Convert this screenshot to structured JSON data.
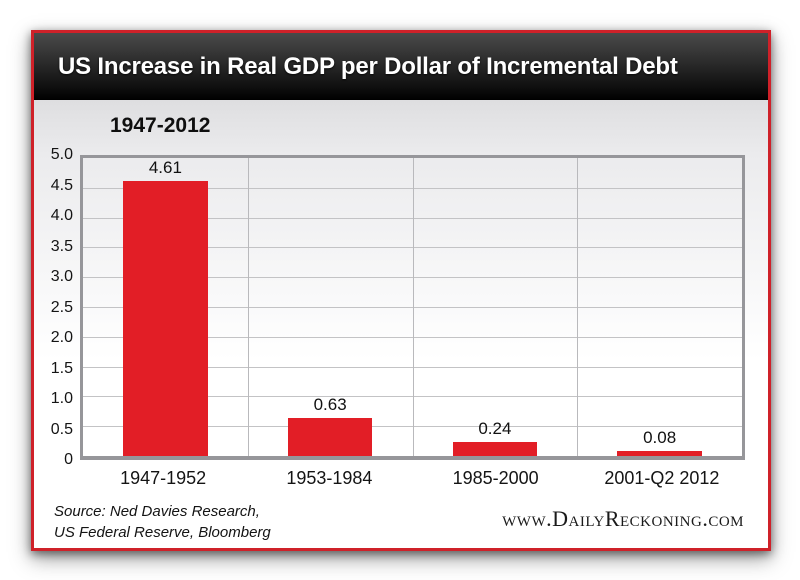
{
  "header": {
    "title": "US Increase in Real GDP per Dollar of Incremental Debt"
  },
  "subtitle": "1947-2012",
  "chart_data": {
    "type": "bar",
    "title": "US Increase in Real GDP per Dollar of Incremental Debt",
    "subtitle": "1947-2012",
    "categories": [
      "1947-1952",
      "1953-1984",
      "1985-2000",
      "2001-Q2 2012"
    ],
    "values": [
      4.61,
      0.63,
      0.24,
      0.08
    ],
    "value_labels": [
      "4.61",
      "0.63",
      "0.24",
      "0.08"
    ],
    "xlabel": "",
    "ylabel": "",
    "ylim": [
      0,
      5.0
    ],
    "ytick_step": 0.5,
    "yticks": [
      "5.0",
      "4.5",
      "4.0",
      "3.5",
      "3.0",
      "2.5",
      "2.0",
      "1.5",
      "1.0",
      "0.5",
      "0"
    ],
    "grid": true,
    "legend": false,
    "bar_color": "#e21e26"
  },
  "footer": {
    "source_line1": "Source: Ned Davies Research,",
    "source_line2": "US Federal Reserve, Bloomberg",
    "website": "www.DailyReckoning.com"
  },
  "colors": {
    "bar": "#e21e26",
    "card_border": "#cf2129",
    "header_background": "#111111",
    "plot_border": "#96969a",
    "gridline": "#c3c3c5"
  }
}
